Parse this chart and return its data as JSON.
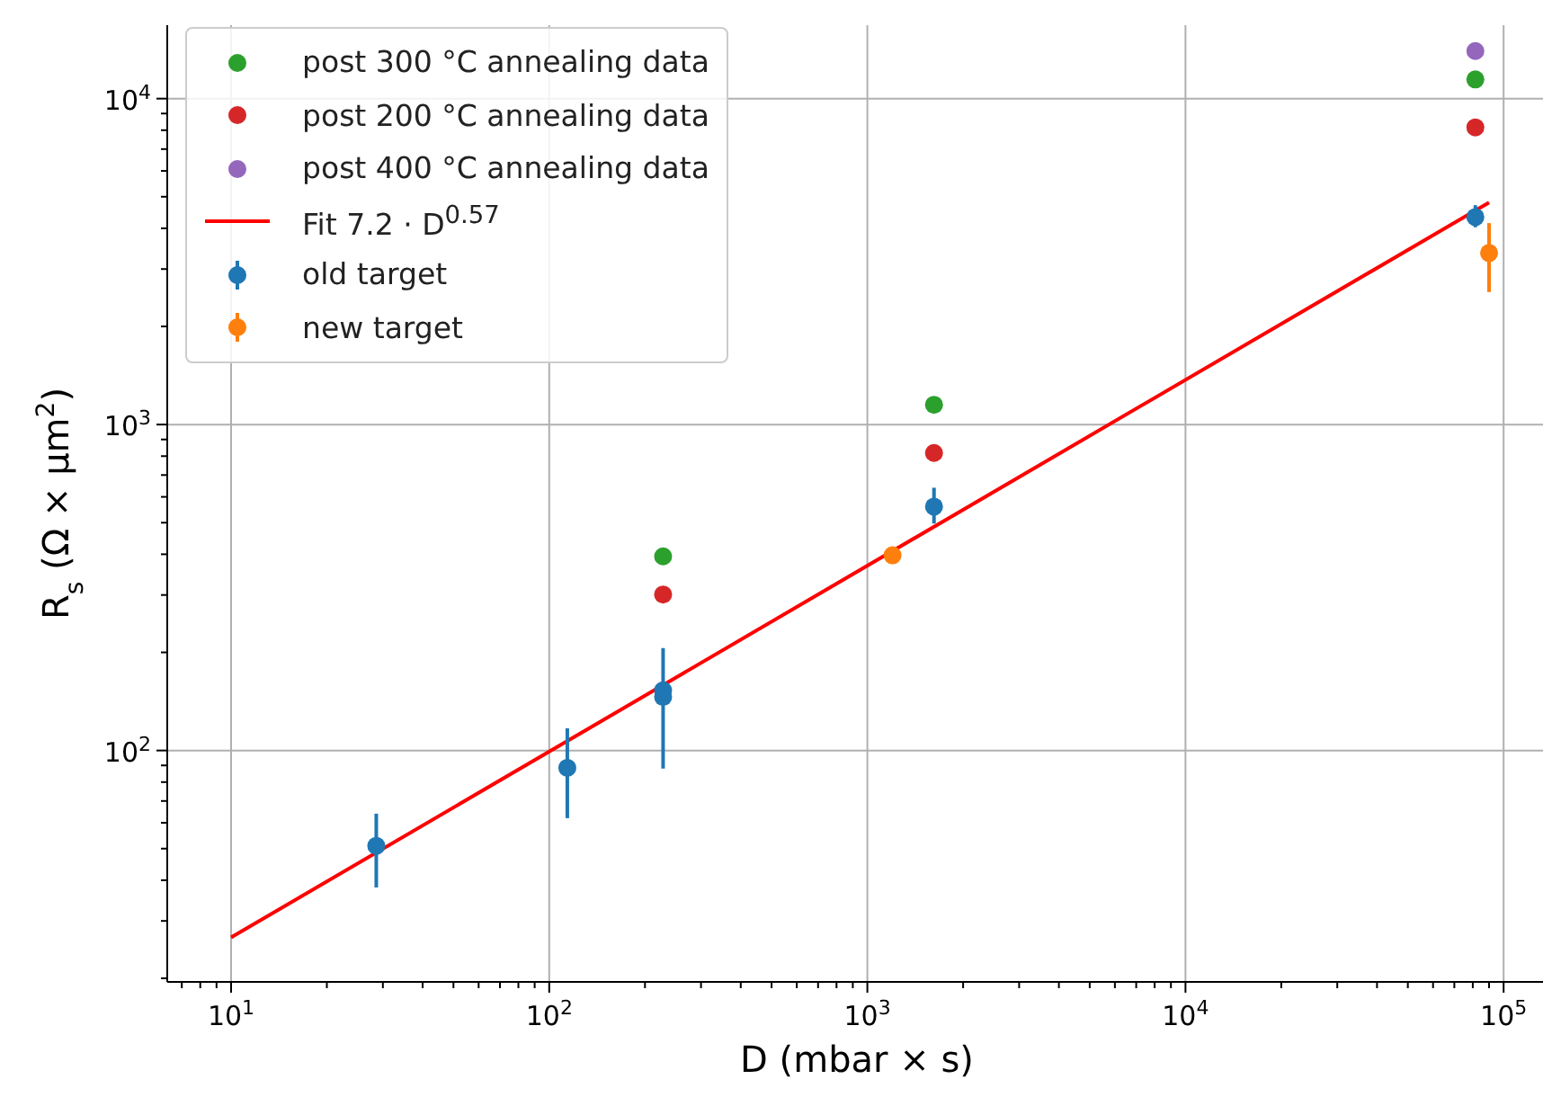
{
  "chart_data": {
    "type": "scatter",
    "xlabel": "D (mbar × s)",
    "ylabel": "R$_{s}$ (Ω × μm$^{2}$)",
    "log": "xy",
    "grid": true,
    "legend": "top left",
    "marker": "circle",
    "xlim": [
      6.3,
      133000
    ],
    "xticks": [
      {
        "value": 10,
        "label": "10$^{1}$"
      },
      {
        "value": 100,
        "label": "10$^{2}$"
      },
      {
        "value": 1000,
        "label": "10$^{3}$"
      },
      {
        "value": 10000,
        "label": "10$^{4}$"
      },
      {
        "value": 100000,
        "label": "10$^{5}$"
      },
      {
        "value": 7,
        "label": null
      },
      {
        "value": 8,
        "label": null
      },
      {
        "value": 9,
        "label": null
      },
      {
        "value": 20,
        "label": null
      },
      {
        "value": 30,
        "label": null
      },
      {
        "value": 40,
        "label": null
      },
      {
        "value": 50,
        "label": null
      },
      {
        "value": 60,
        "label": null
      },
      {
        "value": 70,
        "label": null
      },
      {
        "value": 80,
        "label": null
      },
      {
        "value": 90,
        "label": null
      },
      {
        "value": 200,
        "label": null
      },
      {
        "value": 300,
        "label": null
      },
      {
        "value": 400,
        "label": null
      },
      {
        "value": 500,
        "label": null
      },
      {
        "value": 600,
        "label": null
      },
      {
        "value": 700,
        "label": null
      },
      {
        "value": 800,
        "label": null
      },
      {
        "value": 900,
        "label": null
      },
      {
        "value": 2000,
        "label": null
      },
      {
        "value": 3000,
        "label": null
      },
      {
        "value": 4000,
        "label": null
      },
      {
        "value": 5000,
        "label": null
      },
      {
        "value": 6000,
        "label": null
      },
      {
        "value": 7000,
        "label": null
      },
      {
        "value": 8000,
        "label": null
      },
      {
        "value": 9000,
        "label": null
      },
      {
        "value": 20000,
        "label": null
      },
      {
        "value": 30000,
        "label": null
      },
      {
        "value": 40000,
        "label": null
      },
      {
        "value": 50000,
        "label": null
      },
      {
        "value": 60000,
        "label": null
      },
      {
        "value": 70000,
        "label": null
      },
      {
        "value": 80000,
        "label": null
      },
      {
        "value": 90000,
        "label": null
      }
    ],
    "ylim": [
      19.5,
      16800
    ],
    "yticks": [
      {
        "value": 100,
        "label": "10$^{2}$"
      },
      {
        "value": 1000,
        "label": "10$^{3}$"
      },
      {
        "value": 10000,
        "label": "10$^{4}$"
      },
      {
        "value": 20,
        "label": null
      },
      {
        "value": 30,
        "label": null
      },
      {
        "value": 40,
        "label": null
      },
      {
        "value": 50,
        "label": null
      },
      {
        "value": 60,
        "label": null
      },
      {
        "value": 70,
        "label": null
      },
      {
        "value": 80,
        "label": null
      },
      {
        "value": 90,
        "label": null
      },
      {
        "value": 200,
        "label": null
      },
      {
        "value": 300,
        "label": null
      },
      {
        "value": 400,
        "label": null
      },
      {
        "value": 500,
        "label": null
      },
      {
        "value": 600,
        "label": null
      },
      {
        "value": 700,
        "label": null
      },
      {
        "value": 800,
        "label": null
      },
      {
        "value": 900,
        "label": null
      },
      {
        "value": 2000,
        "label": null
      },
      {
        "value": 3000,
        "label": null
      },
      {
        "value": 4000,
        "label": null
      },
      {
        "value": 5000,
        "label": null
      },
      {
        "value": 6000,
        "label": null
      },
      {
        "value": 7000,
        "label": null
      },
      {
        "value": 8000,
        "label": null
      },
      {
        "value": 9000,
        "label": null
      }
    ],
    "series": [
      {
        "name": "post 300 °C annealing data",
        "color": "#2ca02c",
        "x": [
          228,
          1620,
          81500
        ],
        "values": [
          394,
          1150,
          11450
        ]
      },
      {
        "name": "post 200 °C annealing data",
        "color": "#d62728",
        "x": [
          228,
          1620,
          81500
        ],
        "values": [
          301,
          818,
          8160
        ]
      },
      {
        "name": "post 400 °C annealing data",
        "color": "#9467bd",
        "x": [
          81500
        ],
        "values": [
          14000
        ]
      },
      {
        "name": "Fit 7.2 · D$^{0.57}$",
        "type": "line",
        "color": "#ff0000",
        "marker": "none",
        "x": [
          10,
          90000
        ],
        "values": [
          26.7,
          4800
        ]
      },
      {
        "name": "old target",
        "color": "#1f77b4",
        "x": [
          28.6,
          114,
          228,
          228,
          1620,
          81500
        ],
        "values": [
          51,
          88.5,
          153,
          146,
          560,
          4330
        ],
        "errors": [
          [
            38,
            64
          ],
          [
            62,
            117
          ],
          [
            88,
            206
          ],
          null,
          [
            497,
            640
          ],
          [
            4030,
            4710
          ]
        ]
      },
      {
        "name": "new target",
        "color": "#ff7f0e",
        "x": [
          1200,
          90000
        ],
        "values": [
          397,
          3360
        ],
        "errors": [
          null,
          [
            2550,
            4150
          ]
        ]
      }
    ]
  }
}
